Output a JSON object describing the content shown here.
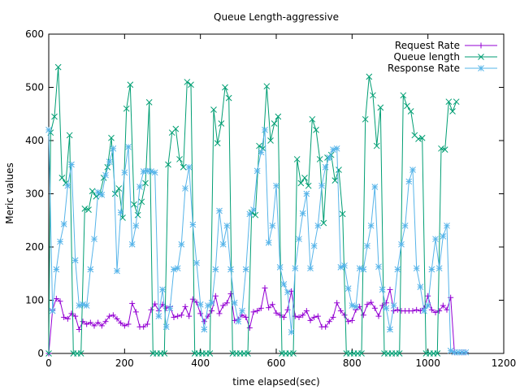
{
  "chart_data": {
    "type": "line",
    "title": "Queue Length-aggressive",
    "xlabel": "time elapsed(sec)",
    "ylabel": "Meric values",
    "xlim": [
      0,
      1200
    ],
    "ylim": [
      0,
      600
    ],
    "xticks": [
      0,
      200,
      400,
      600,
      800,
      1000,
      1200
    ],
    "yticks": [
      0,
      100,
      200,
      300,
      400,
      500,
      600
    ],
    "grid": false,
    "legend_position": "top-right",
    "series": [
      {
        "name": "Request Rate",
        "color": "#9400d3",
        "marker": "plus",
        "x": [
          0,
          10,
          20,
          30,
          40,
          50,
          60,
          70,
          80,
          90,
          100,
          110,
          120,
          130,
          140,
          150,
          160,
          170,
          180,
          190,
          200,
          210,
          220,
          230,
          240,
          250,
          260,
          270,
          280,
          290,
          300,
          310,
          320,
          330,
          340,
          350,
          360,
          370,
          380,
          390,
          400,
          410,
          420,
          430,
          440,
          450,
          460,
          470,
          480,
          490,
          500,
          510,
          520,
          530,
          540,
          550,
          560,
          570,
          580,
          590,
          600,
          610,
          620,
          630,
          640,
          650,
          660,
          670,
          680,
          690,
          700,
          710,
          720,
          730,
          740,
          750,
          760,
          770,
          780,
          790,
          800,
          810,
          820,
          830,
          840,
          850,
          860,
          870,
          880,
          890,
          900,
          910,
          920,
          930,
          940,
          950,
          960,
          970,
          980,
          990,
          1000,
          1010,
          1020,
          1030,
          1040,
          1050,
          1060,
          1070,
          1080,
          1090,
          1100
        ],
        "y": [
          0,
          82,
          103,
          98,
          68,
          65,
          75,
          70,
          45,
          60,
          55,
          58,
          52,
          58,
          52,
          60,
          70,
          72,
          65,
          57,
          52,
          55,
          94,
          78,
          50,
          50,
          55,
          82,
          93,
          80,
          92,
          85,
          88,
          68,
          70,
          72,
          88,
          70,
          102,
          96,
          75,
          60,
          70,
          80,
          108,
          75,
          90,
          95,
          112,
          62,
          64,
          72,
          68,
          48,
          78,
          80,
          85,
          123,
          86,
          92,
          76,
          72,
          68,
          82,
          117,
          70,
          68,
          72,
          80,
          62,
          68,
          70,
          50,
          50,
          60,
          68,
          95,
          80,
          72,
          60,
          62,
          82,
          88,
          72,
          92,
          96,
          85,
          70,
          90,
          95,
          120,
          80,
          82,
          80,
          80,
          80,
          80,
          82,
          80,
          85,
          108,
          82,
          77,
          80,
          90,
          82,
          105,
          2,
          2,
          2,
          2
        ]
      },
      {
        "name": "Queue length",
        "color": "#009e73",
        "marker": "cross",
        "x": [
          0,
          5,
          15,
          25,
          35,
          45,
          55,
          65,
          75,
          85,
          95,
          105,
          115,
          125,
          135,
          145,
          155,
          165,
          175,
          185,
          195,
          205,
          215,
          225,
          235,
          245,
          255,
          265,
          275,
          285,
          295,
          305,
          315,
          325,
          335,
          345,
          355,
          365,
          375,
          385,
          395,
          405,
          415,
          425,
          435,
          445,
          455,
          465,
          475,
          485,
          495,
          505,
          515,
          525,
          535,
          545,
          555,
          565,
          575,
          585,
          595,
          605,
          615,
          625,
          635,
          645,
          655,
          665,
          675,
          685,
          695,
          705,
          715,
          725,
          735,
          745,
          755,
          765,
          775,
          785,
          795,
          805,
          815,
          825,
          835,
          845,
          855,
          865,
          875,
          885,
          895,
          905,
          915,
          925,
          935,
          945,
          955,
          965,
          975,
          985,
          995,
          1005,
          1015,
          1025,
          1035,
          1045,
          1055,
          1065,
          1075
        ],
        "y": [
          0,
          415,
          445,
          538,
          330,
          320,
          410,
          0,
          0,
          0,
          272,
          270,
          305,
          295,
          300,
          330,
          350,
          405,
          300,
          310,
          255,
          460,
          505,
          280,
          260,
          285,
          320,
          472,
          0,
          0,
          0,
          0,
          355,
          415,
          422,
          365,
          350,
          510,
          505,
          0,
          0,
          0,
          0,
          0,
          458,
          395,
          432,
          500,
          480,
          0,
          0,
          0,
          0,
          0,
          265,
          260,
          390,
          385,
          502,
          400,
          432,
          445,
          0,
          0,
          0,
          0,
          365,
          320,
          330,
          315,
          440,
          420,
          365,
          245,
          368,
          373,
          325,
          345,
          262,
          0,
          0,
          0,
          0,
          0,
          440,
          520,
          485,
          390,
          462,
          0,
          0,
          0,
          0,
          0,
          485,
          465,
          455,
          410,
          403,
          405,
          0,
          0,
          0,
          0,
          385,
          383,
          473,
          455,
          473
        ]
      },
      {
        "name": "Response Rate",
        "color": "#56b4e9",
        "marker": "star",
        "x": [
          0,
          10,
          20,
          30,
          40,
          50,
          60,
          70,
          80,
          90,
          100,
          110,
          120,
          130,
          140,
          150,
          160,
          170,
          180,
          190,
          200,
          210,
          220,
          230,
          240,
          250,
          260,
          270,
          280,
          290,
          300,
          310,
          320,
          330,
          340,
          350,
          360,
          370,
          380,
          390,
          400,
          410,
          420,
          430,
          440,
          450,
          460,
          470,
          480,
          490,
          500,
          510,
          520,
          530,
          540,
          550,
          560,
          570,
          580,
          590,
          600,
          610,
          620,
          630,
          640,
          650,
          660,
          670,
          680,
          690,
          700,
          710,
          720,
          730,
          740,
          750,
          760,
          770,
          780,
          790,
          800,
          810,
          820,
          830,
          840,
          850,
          860,
          870,
          880,
          890,
          900,
          910,
          920,
          930,
          940,
          950,
          960,
          970,
          980,
          990,
          1000,
          1010,
          1020,
          1030,
          1040,
          1050,
          1060,
          1070,
          1080,
          1090,
          1100
        ],
        "y": [
          420,
          80,
          158,
          210,
          243,
          315,
          355,
          175,
          90,
          92,
          90,
          158,
          215,
          303,
          298,
          335,
          360,
          385,
          155,
          265,
          340,
          388,
          205,
          240,
          313,
          342,
          343,
          342,
          340,
          70,
          120,
          50,
          85,
          158,
          160,
          205,
          310,
          350,
          242,
          170,
          92,
          45,
          90,
          95,
          158,
          268,
          205,
          240,
          158,
          95,
          60,
          80,
          158,
          262,
          270,
          343,
          378,
          420,
          208,
          240,
          315,
          162,
          130,
          115,
          40,
          160,
          215,
          263,
          300,
          160,
          202,
          240,
          315,
          350,
          368,
          383,
          385,
          162,
          165,
          122,
          90,
          88,
          160,
          158,
          202,
          240,
          313,
          163,
          120,
          85,
          45,
          90,
          158,
          205,
          240,
          323,
          345,
          160,
          125,
          80,
          90,
          158,
          215,
          160,
          220,
          240,
          5,
          2,
          2,
          2,
          2
        ]
      }
    ]
  }
}
